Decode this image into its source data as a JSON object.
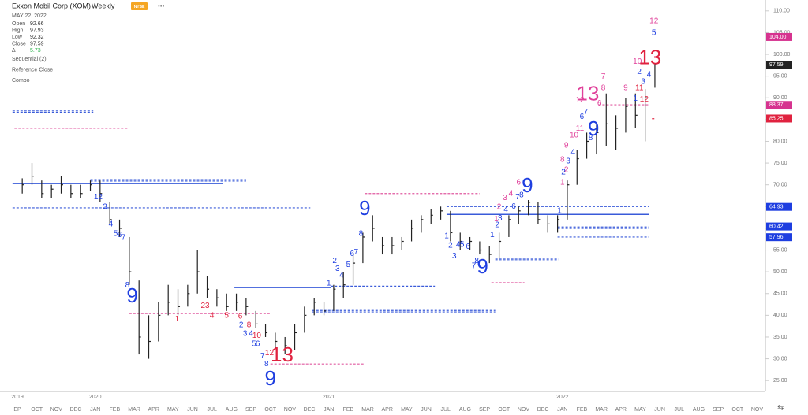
{
  "chart_data": {
    "type": "ohlc",
    "title": "Exxon Mobil Corp (XOM)",
    "interval": "Weekly",
    "exchange": "NYSE",
    "menu": "•••",
    "date": "MAY 22, 2022",
    "stats": [
      {
        "label": "Open",
        "value": "92.66"
      },
      {
        "label": "High",
        "value": "97.93"
      },
      {
        "label": "Low",
        "value": "92.32"
      },
      {
        "label": "Close",
        "value": "97.59"
      },
      {
        "label": "Δ",
        "value": "5.73"
      }
    ],
    "indicators": [
      "Sequential (2)",
      "Reference Close",
      "Combo"
    ],
    "swap_icon": "⇆",
    "xticks": [
      "EP",
      "OCT",
      "NOV",
      "DEC",
      "JAN",
      "FEB",
      "MAR",
      "APR",
      "MAY",
      "JUN",
      "JUL",
      "AUG",
      "SEP",
      "OCT",
      "NOV",
      "DEC",
      "JAN",
      "FEB",
      "MAR",
      "APR",
      "MAY",
      "JUN",
      "JUL",
      "AUG",
      "SEP",
      "OCT",
      "NOV",
      "DEC",
      "JAN",
      "FEB",
      "MAR",
      "APR",
      "MAY",
      "JUN",
      "JUL",
      "AUG",
      "SEP",
      "OCT",
      "NOV"
    ],
    "years": [
      {
        "label": "2019",
        "tick": 0
      },
      {
        "label": "2020",
        "tick": 4
      },
      {
        "label": "2021",
        "tick": 16
      },
      {
        "label": "2022",
        "tick": 28
      }
    ],
    "ylim": [
      22.5,
      112.5
    ],
    "yticks": [
      {
        "value": 25,
        "label": "25.00"
      },
      {
        "value": 30,
        "label": "30.00"
      },
      {
        "value": 35,
        "label": "35.00"
      },
      {
        "value": 40,
        "label": "40.00"
      },
      {
        "value": 45,
        "label": "45.00"
      },
      {
        "value": 50,
        "label": "50.00"
      },
      {
        "value": 55,
        "label": "55.00"
      },
      {
        "value": 60,
        "label": "60.00"
      },
      {
        "value": 65,
        "label": "65.00"
      },
      {
        "value": 70,
        "label": "70.00"
      },
      {
        "value": 75,
        "label": "75.00"
      },
      {
        "value": 80,
        "label": "80.00"
      },
      {
        "value": 85,
        "label": "85.00"
      },
      {
        "value": 90,
        "label": "90.00"
      },
      {
        "value": 95,
        "label": "95.00"
      },
      {
        "value": 100,
        "label": "100.00"
      },
      {
        "value": 105,
        "label": "105.00"
      },
      {
        "value": 110,
        "label": "110.00"
      }
    ],
    "price_tags": [
      {
        "value": 104,
        "label": "104.00",
        "color": "#d6338f"
      },
      {
        "value": 97.59,
        "label": "97.59",
        "color": "#222"
      },
      {
        "value": 88.37,
        "label": "88.37",
        "color": "#d6338f"
      },
      {
        "value": 85.25,
        "label": "85.25",
        "color": "#e0223f"
      },
      {
        "value": 64.93,
        "label": "64.93",
        "color": "#1e3ee0"
      },
      {
        "value": 60.42,
        "label": "60.42",
        "color": "#1e3ee0"
      },
      {
        "value": 57.96,
        "label": "57.96",
        "color": "#1e3ee0"
      }
    ],
    "bar_color": "#222",
    "high": [
      71.5,
      75,
      71,
      70,
      72,
      70,
      70,
      71,
      71,
      66,
      62,
      58,
      48,
      40,
      43,
      47,
      46,
      47,
      55,
      49,
      46,
      45,
      45,
      44,
      41,
      38,
      36,
      35,
      38,
      42,
      44,
      43,
      47,
      50,
      54,
      59,
      63,
      58,
      58,
      58,
      62,
      63,
      64.5,
      65,
      64,
      59,
      58,
      57,
      56,
      59,
      63,
      65,
      66.5,
      66,
      63,
      63,
      71,
      78,
      82,
      84,
      91,
      86,
      90,
      91,
      92,
      97.93
    ],
    "low": [
      68,
      70,
      67,
      67,
      68,
      67,
      67,
      68.5,
      66,
      61,
      58,
      47,
      31,
      30,
      34,
      40,
      40,
      42,
      45,
      44,
      42,
      41,
      41,
      40,
      37,
      35,
      32.5,
      31,
      32,
      36,
      40,
      40,
      41,
      44,
      47,
      52,
      57,
      54,
      54,
      55,
      57,
      59,
      61,
      62,
      57,
      55,
      55,
      54,
      52,
      53,
      58,
      61,
      63,
      61,
      59,
      59,
      62,
      70,
      76,
      77,
      79,
      78,
      82,
      83,
      80,
      92.32
    ],
    "close": [
      70,
      72,
      68,
      69,
      70,
      68,
      68,
      70,
      68,
      62,
      60,
      50,
      35,
      34,
      40,
      43,
      42,
      45,
      50,
      46,
      44,
      42,
      43,
      42,
      38,
      36,
      34,
      33,
      36,
      40,
      43,
      41,
      46,
      47,
      52,
      58,
      60,
      56,
      56,
      57,
      60,
      62,
      63,
      64,
      59,
      57,
      57,
      55,
      54,
      57,
      62,
      64,
      66,
      62,
      61,
      62,
      70,
      76,
      80,
      82,
      84,
      83,
      88,
      86,
      90,
      97.59
    ],
    "levels": [
      {
        "y": 87,
        "from": -1,
        "to": 7.3,
        "color": "#3a5bd9",
        "style": "double"
      },
      {
        "y": 83,
        "from": -0.8,
        "to": 11,
        "color": "#e05aa0",
        "style": "dashed"
      },
      {
        "y": 70.3,
        "from": -1,
        "to": 20.6,
        "color": "#3a5bd9",
        "style": "solid"
      },
      {
        "y": 71.2,
        "from": 7,
        "to": 23,
        "color": "#3a5bd9",
        "style": "double"
      },
      {
        "y": 64.7,
        "from": -1,
        "to": 29.6,
        "color": "#3a5bd9",
        "style": "dashed"
      },
      {
        "y": 40.4,
        "from": 11,
        "to": 25.5,
        "color": "#e05aa0",
        "style": "dashed"
      },
      {
        "y": 46.4,
        "from": 21.8,
        "to": 31.7,
        "color": "#3a5bd9",
        "style": "solid"
      },
      {
        "y": 46.7,
        "from": 31.7,
        "to": 42.4,
        "color": "#3a5bd9",
        "style": "dashed"
      },
      {
        "y": 41.1,
        "from": 29.8,
        "to": 48.6,
        "color": "#3a5bd9",
        "style": "double"
      },
      {
        "y": 28.8,
        "from": 25.5,
        "to": 35.2,
        "color": "#e05aa0",
        "style": "dashed"
      },
      {
        "y": 68,
        "from": 35.2,
        "to": 47,
        "color": "#e05aa0",
        "style": "dashed"
      },
      {
        "y": 63.2,
        "from": 43.6,
        "to": 64.4,
        "color": "#3a5bd9",
        "style": "solid"
      },
      {
        "y": 65,
        "from": 43.6,
        "to": 64.4,
        "color": "#3a5bd9",
        "style": "dashed"
      },
      {
        "y": 53.1,
        "from": 48.6,
        "to": 55.1,
        "color": "#3a5bd9",
        "style": "double"
      },
      {
        "y": 47.5,
        "from": 48.2,
        "to": 51.6,
        "color": "#e05aa0",
        "style": "dashed"
      },
      {
        "y": 60.3,
        "from": 55,
        "to": 64.4,
        "color": "#3a5bd9",
        "style": "double"
      },
      {
        "y": 58,
        "from": 55,
        "to": 64.4,
        "color": "#3a5bd9",
        "style": "dashed"
      },
      {
        "y": 88.4,
        "from": 59.2,
        "to": 64.4,
        "color": "#e05aa0",
        "style": "dashed"
      },
      {
        "y": 85.2,
        "from": 64.7,
        "to": 65,
        "color": "#e0223f",
        "style": "dashed"
      }
    ],
    "annotations": [
      {
        "text": "12",
        "x": 7.8,
        "y": 67.2,
        "color": "#1e3ee0",
        "big": false
      },
      {
        "text": "3",
        "x": 8.5,
        "y": 64.9,
        "color": "#1e3ee0",
        "big": false
      },
      {
        "text": "4",
        "x": 9.1,
        "y": 60.9,
        "color": "#1e3ee0",
        "big": false
      },
      {
        "text": "5",
        "x": 9.6,
        "y": 58.7,
        "color": "#1e3ee0",
        "big": false
      },
      {
        "text": "6",
        "x": 10,
        "y": 58.5,
        "color": "#1e3ee0",
        "big": false
      },
      {
        "text": "7",
        "x": 10.4,
        "y": 57.8,
        "color": "#1e3ee0",
        "big": false
      },
      {
        "text": "8",
        "x": 10.8,
        "y": 46.9,
        "color": "#1e3ee0",
        "big": false
      },
      {
        "text": "9",
        "x": 11.3,
        "y": 44.2,
        "color": "#1e3ee0",
        "big": true
      },
      {
        "text": "1",
        "x": 15.9,
        "y": 39.1,
        "color": "#e0223f",
        "big": false
      },
      {
        "text": "23",
        "x": 18.8,
        "y": 42.2,
        "color": "#e0223f",
        "big": false
      },
      {
        "text": "4",
        "x": 19.5,
        "y": 39.9,
        "color": "#e0223f",
        "big": false
      },
      {
        "text": "5",
        "x": 21,
        "y": 39.9,
        "color": "#e0223f",
        "big": false
      },
      {
        "text": "6",
        "x": 22.4,
        "y": 39.7,
        "color": "#e0223f",
        "big": false
      },
      {
        "text": "8",
        "x": 23.3,
        "y": 37.7,
        "color": "#e0223f",
        "big": false
      },
      {
        "text": "10",
        "x": 24.1,
        "y": 35.3,
        "color": "#e0223f",
        "big": false
      },
      {
        "text": "12",
        "x": 25.4,
        "y": 31.3,
        "color": "#e0223f",
        "big": false
      },
      {
        "text": "13",
        "x": 26.7,
        "y": 30.6,
        "color": "#e0223f",
        "big": true
      },
      {
        "text": "2",
        "x": 22.5,
        "y": 37.7,
        "color": "#1e3ee0",
        "big": false
      },
      {
        "text": "3",
        "x": 22.9,
        "y": 35.7,
        "color": "#1e3ee0",
        "big": false
      },
      {
        "text": "4",
        "x": 23.5,
        "y": 35.7,
        "color": "#1e3ee0",
        "big": false
      },
      {
        "text": "5",
        "x": 23.8,
        "y": 33.4,
        "color": "#1e3ee0",
        "big": false
      },
      {
        "text": "6",
        "x": 24.2,
        "y": 33.4,
        "color": "#1e3ee0",
        "big": false
      },
      {
        "text": "7",
        "x": 24.7,
        "y": 30.6,
        "color": "#1e3ee0",
        "big": false
      },
      {
        "text": "8",
        "x": 25.1,
        "y": 28.8,
        "color": "#1e3ee0",
        "big": false
      },
      {
        "text": "9",
        "x": 25.5,
        "y": 25.2,
        "color": "#1e3ee0",
        "big": true
      },
      {
        "text": "1",
        "x": 31.5,
        "y": 47.3,
        "color": "#1e3ee0",
        "big": false
      },
      {
        "text": "2",
        "x": 32.1,
        "y": 52.5,
        "color": "#1e3ee0",
        "big": false
      },
      {
        "text": "3",
        "x": 32.4,
        "y": 50.7,
        "color": "#1e3ee0",
        "big": false
      },
      {
        "text": "4",
        "x": 32.8,
        "y": 49.1,
        "color": "#1e3ee0",
        "big": false
      },
      {
        "text": "5",
        "x": 33.5,
        "y": 51.6,
        "color": "#1e3ee0",
        "big": false
      },
      {
        "text": "6",
        "x": 33.9,
        "y": 54.1,
        "color": "#1e3ee0",
        "big": false
      },
      {
        "text": "7",
        "x": 34.3,
        "y": 54.5,
        "color": "#1e3ee0",
        "big": false
      },
      {
        "text": "8",
        "x": 34.8,
        "y": 58.7,
        "color": "#1e3ee0",
        "big": false
      },
      {
        "text": "9",
        "x": 35.2,
        "y": 64.3,
        "color": "#1e3ee0",
        "big": true
      },
      {
        "text": "1",
        "x": 43.6,
        "y": 58.2,
        "color": "#1e3ee0",
        "big": false
      },
      {
        "text": "2",
        "x": 44,
        "y": 56,
        "color": "#1e3ee0",
        "big": false
      },
      {
        "text": "3",
        "x": 44.4,
        "y": 53.6,
        "color": "#1e3ee0",
        "big": false
      },
      {
        "text": "4",
        "x": 44.8,
        "y": 56.2,
        "color": "#1e3ee0",
        "big": false
      },
      {
        "text": "5",
        "x": 45.2,
        "y": 56.2,
        "color": "#1e3ee0",
        "big": false
      },
      {
        "text": "6",
        "x": 45.8,
        "y": 55.8,
        "color": "#1e3ee0",
        "big": false
      },
      {
        "text": "7",
        "x": 46.4,
        "y": 51.3,
        "color": "#1e3ee0",
        "big": false
      },
      {
        "text": "8",
        "x": 46.7,
        "y": 52.5,
        "color": "#1e3ee0",
        "big": false
      },
      {
        "text": "9",
        "x": 47.3,
        "y": 50.9,
        "color": "#1e3ee0",
        "big": true
      },
      {
        "text": "1",
        "x": 48.3,
        "y": 58.5,
        "color": "#1e3ee0",
        "big": false
      },
      {
        "text": "2",
        "x": 48.8,
        "y": 60.7,
        "color": "#1e3ee0",
        "big": false
      },
      {
        "text": "3",
        "x": 49.1,
        "y": 62.3,
        "color": "#1e3ee0",
        "big": false
      },
      {
        "text": "4",
        "x": 49.7,
        "y": 64.3,
        "color": "#1e3ee0",
        "big": false
      },
      {
        "text": "6",
        "x": 50.5,
        "y": 65,
        "color": "#1e3ee0",
        "big": false
      },
      {
        "text": "7",
        "x": 50.9,
        "y": 67.2,
        "color": "#1e3ee0",
        "big": false
      },
      {
        "text": "8",
        "x": 51.3,
        "y": 67.6,
        "color": "#1e3ee0",
        "big": false
      },
      {
        "text": "9",
        "x": 51.9,
        "y": 69.6,
        "color": "#1e3ee0",
        "big": true
      },
      {
        "text": "1",
        "x": 48.7,
        "y": 62.1,
        "color": "#e0409a",
        "big": false
      },
      {
        "text": "2",
        "x": 49,
        "y": 64.9,
        "color": "#e0409a",
        "big": false
      },
      {
        "text": "3",
        "x": 49.6,
        "y": 67,
        "color": "#e0409a",
        "big": false
      },
      {
        "text": "4",
        "x": 50.2,
        "y": 68,
        "color": "#e0409a",
        "big": false
      },
      {
        "text": "6",
        "x": 51,
        "y": 70.5,
        "color": "#e0409a",
        "big": false
      },
      {
        "text": "1",
        "x": 55.5,
        "y": 70.5,
        "color": "#e0409a",
        "big": false
      },
      {
        "text": "2",
        "x": 55.9,
        "y": 73.4,
        "color": "#e0409a",
        "big": false
      },
      {
        "text": "8",
        "x": 55.5,
        "y": 75.8,
        "color": "#e0409a",
        "big": false
      },
      {
        "text": "9",
        "x": 55.9,
        "y": 79,
        "color": "#e0409a",
        "big": false
      },
      {
        "text": "10",
        "x": 56.7,
        "y": 81.4,
        "color": "#e0409a",
        "big": false
      },
      {
        "text": "11",
        "x": 57.3,
        "y": 82.9,
        "color": "#e0409a",
        "big": false
      },
      {
        "text": "12",
        "x": 57.3,
        "y": 89.4,
        "color": "#e0409a",
        "big": false
      },
      {
        "text": "13",
        "x": 58.1,
        "y": 90.7,
        "color": "#e0409a",
        "big": true
      },
      {
        "text": "6",
        "x": 59.3,
        "y": 88.7,
        "color": "#e0409a",
        "big": false
      },
      {
        "text": "7",
        "x": 59.7,
        "y": 94.9,
        "color": "#e0409a",
        "big": false
      },
      {
        "text": "8",
        "x": 59.7,
        "y": 92.2,
        "color": "#e0409a",
        "big": false
      },
      {
        "text": "9",
        "x": 62,
        "y": 92.2,
        "color": "#e0409a",
        "big": false
      },
      {
        "text": "10",
        "x": 63.2,
        "y": 98.3,
        "color": "#e0409a",
        "big": false
      },
      {
        "text": "11",
        "x": 63.4,
        "y": 92.2,
        "color": "#e0223f",
        "big": false
      },
      {
        "text": "12",
        "x": 63.9,
        "y": 89.6,
        "color": "#e0223f",
        "big": false
      },
      {
        "text": "13",
        "x": 64.5,
        "y": 99,
        "color": "#e0223f",
        "big": true
      },
      {
        "text": "12",
        "x": 64.9,
        "y": 107.6,
        "color": "#e0409a",
        "big": false
      },
      {
        "text": "1",
        "x": 55.2,
        "y": 64,
        "color": "#1e3ee0",
        "big": false
      },
      {
        "text": "2",
        "x": 55.6,
        "y": 72.9,
        "color": "#1e3ee0",
        "big": false
      },
      {
        "text": "3",
        "x": 56.1,
        "y": 75.4,
        "color": "#1e3ee0",
        "big": false
      },
      {
        "text": "4",
        "x": 56.6,
        "y": 77.5,
        "color": "#1e3ee0",
        "big": false
      },
      {
        "text": "6",
        "x": 57.5,
        "y": 85.6,
        "color": "#1e3ee0",
        "big": false
      },
      {
        "text": "7",
        "x": 57.9,
        "y": 86.7,
        "color": "#1e3ee0",
        "big": false
      },
      {
        "text": "8",
        "x": 58.4,
        "y": 80.7,
        "color": "#1e3ee0",
        "big": false
      },
      {
        "text": "9",
        "x": 58.7,
        "y": 82.6,
        "color": "#1e3ee0",
        "big": true
      },
      {
        "text": "1",
        "x": 63,
        "y": 89.8,
        "color": "#1e3ee0",
        "big": false
      },
      {
        "text": "2",
        "x": 63.4,
        "y": 96,
        "color": "#1e3ee0",
        "big": false
      },
      {
        "text": "3",
        "x": 63.8,
        "y": 93.7,
        "color": "#1e3ee0",
        "big": false
      },
      {
        "text": "4",
        "x": 64.4,
        "y": 95.3,
        "color": "#1e3ee0",
        "big": false
      },
      {
        "text": "5",
        "x": 64.9,
        "y": 104.9,
        "color": "#1e3ee0",
        "big": false
      }
    ]
  }
}
